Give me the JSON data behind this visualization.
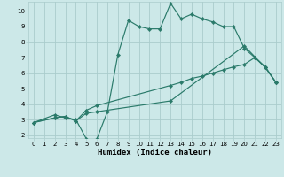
{
  "title": "",
  "xlabel": "Humidex (Indice chaleur)",
  "bg_color": "#cce8e8",
  "line_color": "#2a7a6a",
  "grid_color": "#aacccc",
  "xlim": [
    -0.5,
    23.5
  ],
  "ylim": [
    1.8,
    10.6
  ],
  "xticks": [
    0,
    1,
    2,
    3,
    4,
    5,
    6,
    7,
    8,
    9,
    10,
    11,
    12,
    13,
    14,
    15,
    16,
    17,
    18,
    19,
    20,
    21,
    22,
    23
  ],
  "yticks": [
    2,
    3,
    4,
    5,
    6,
    7,
    8,
    9,
    10
  ],
  "line1_x": [
    0,
    2,
    3,
    4,
    5,
    6,
    7,
    8,
    9,
    10,
    11,
    12,
    13,
    14,
    15,
    16,
    17,
    18,
    19,
    20,
    21,
    22,
    23
  ],
  "line1_y": [
    2.8,
    3.3,
    3.1,
    3.0,
    1.75,
    1.75,
    3.5,
    7.2,
    9.4,
    9.0,
    8.85,
    8.85,
    10.5,
    9.5,
    9.8,
    9.5,
    9.3,
    9.0,
    9.0,
    7.6,
    7.0,
    6.4,
    5.4
  ],
  "line2_x": [
    0,
    2,
    3,
    4,
    5,
    6,
    13,
    14,
    15,
    16,
    17,
    18,
    19,
    20,
    21,
    22,
    23
  ],
  "line2_y": [
    2.8,
    3.1,
    3.2,
    2.9,
    3.6,
    3.9,
    5.2,
    5.4,
    5.65,
    5.8,
    6.0,
    6.2,
    6.4,
    6.55,
    7.0,
    6.35,
    5.4
  ],
  "line3_x": [
    0,
    2,
    3,
    4,
    5,
    6,
    13,
    20,
    22,
    23
  ],
  "line3_y": [
    2.8,
    3.1,
    3.2,
    2.9,
    3.4,
    3.5,
    4.2,
    7.75,
    6.35,
    5.4
  ],
  "marker": "D",
  "markersize": 2.2,
  "linewidth": 0.85,
  "xlabel_fontsize": 6.5,
  "tick_fontsize": 5.0
}
